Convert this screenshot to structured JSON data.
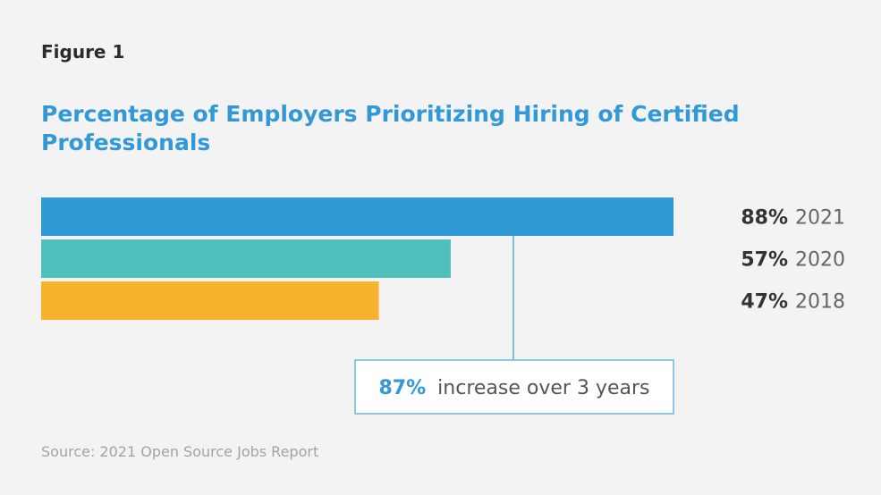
{
  "figure_label": "Figure 1",
  "source": "Source: 2021 Open Source Jobs Report",
  "chart_data": {
    "type": "bar",
    "orientation": "horizontal",
    "title": "Percentage of Employers Prioritizing Hiring of Certified Professionals",
    "categories": [
      "2021",
      "2020",
      "2018"
    ],
    "values": [
      88,
      57,
      47
    ],
    "value_labels": [
      "88%",
      "57%",
      "47%"
    ],
    "colors": [
      "#2f9bd6",
      "#4fc0bc",
      "#f8b32e"
    ],
    "xlim": [
      0,
      100
    ],
    "xlabel": "",
    "ylabel": "",
    "annotation": {
      "value": "87%",
      "text": "increase over 3 years",
      "accent": "#3399d6"
    }
  }
}
